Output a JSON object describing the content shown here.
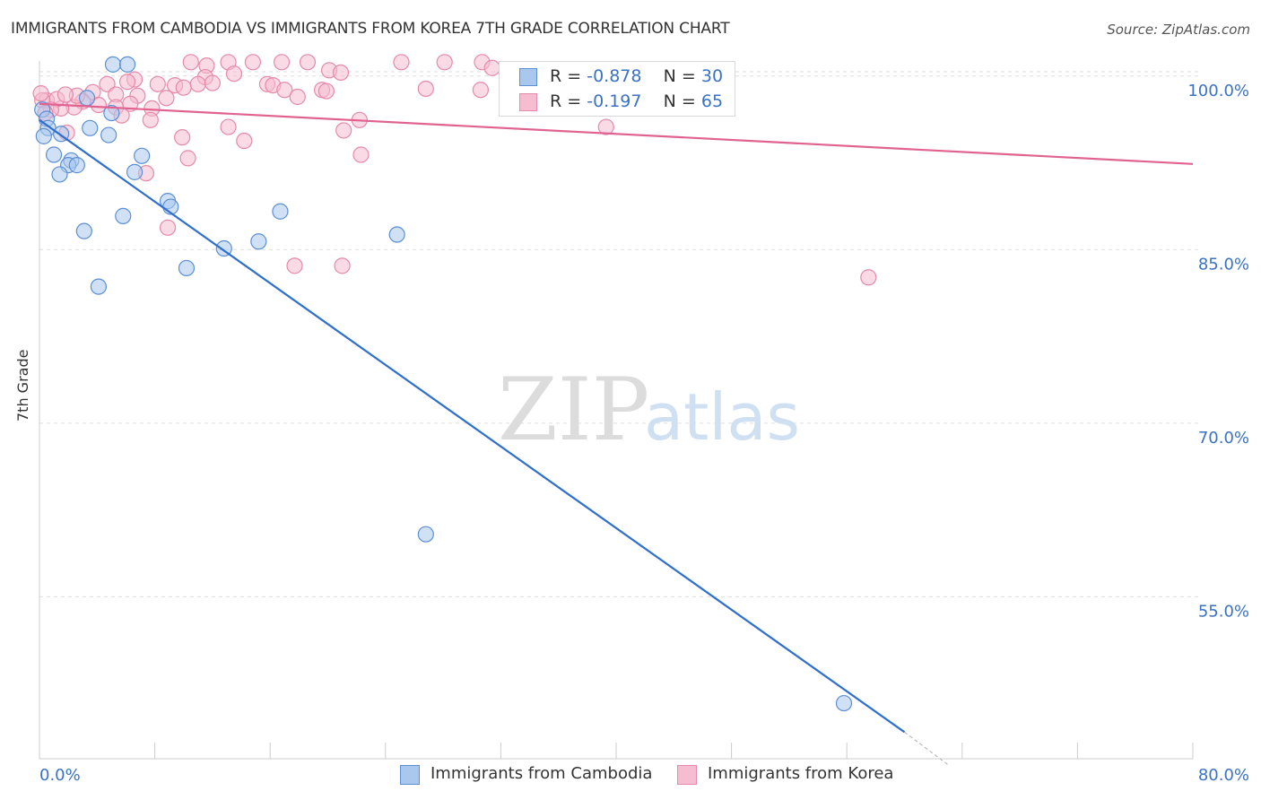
{
  "title": "IMMIGRANTS FROM CAMBODIA VS IMMIGRANTS FROM KOREA 7TH GRADE CORRELATION CHART",
  "source": "Source: ZipAtlas.com",
  "watermark": {
    "zip": "ZIP",
    "atlas": "atlas"
  },
  "legend_top": {
    "r_label": "R =",
    "n_label": "N =",
    "rows": [
      {
        "r": "-0.878",
        "n": "30"
      },
      {
        "r": "-0.197",
        "n": "65"
      }
    ]
  },
  "colors": {
    "cambodia_fill": "#aac8ee",
    "cambodia_stroke": "#5b8fd6",
    "cambodia_line": "#2e6fcf",
    "korea_fill": "#f6bcd0",
    "korea_stroke": "#e58aa9",
    "korea_line": "#e0628f",
    "tick_label": "#3a72c6",
    "grid": "#dddddd"
  },
  "chart_data": {
    "type": "scatter",
    "title": "IMMIGRANTS FROM CAMBODIA VS IMMIGRANTS FROM KOREA 7TH GRADE CORRELATION CHART",
    "xlabel": "",
    "ylabel": "7th Grade",
    "xlim": [
      0,
      80
    ],
    "ylim": [
      41,
      101.3
    ],
    "x_tick_labels": [
      "0.0%",
      "80.0%"
    ],
    "y_ticks": [
      100,
      85,
      70,
      55
    ],
    "y_tick_labels": [
      "100.0%",
      "85.0%",
      "70.0%",
      "55.0%"
    ],
    "grid": true,
    "legend_position": "bottom",
    "series": [
      {
        "name": "Immigrants from Cambodia",
        "points": [
          [
            5.1,
            101.0
          ],
          [
            6.1,
            101.0
          ],
          [
            3.3,
            98.1
          ],
          [
            0.2,
            97.1
          ],
          [
            0.5,
            96.3
          ],
          [
            0.6,
            95.5
          ],
          [
            1.5,
            95.0
          ],
          [
            3.5,
            95.5
          ],
          [
            4.8,
            94.9
          ],
          [
            5.0,
            96.8
          ],
          [
            1.0,
            93.2
          ],
          [
            2.2,
            92.7
          ],
          [
            2.0,
            92.3
          ],
          [
            2.6,
            92.3
          ],
          [
            7.1,
            93.1
          ],
          [
            1.4,
            91.5
          ],
          [
            6.6,
            91.7
          ],
          [
            8.9,
            89.2
          ],
          [
            9.1,
            88.7
          ],
          [
            16.7,
            88.3
          ],
          [
            5.8,
            87.9
          ],
          [
            3.1,
            86.6
          ],
          [
            24.8,
            86.3
          ],
          [
            15.2,
            85.7
          ],
          [
            12.8,
            85.1
          ],
          [
            10.2,
            83.4
          ],
          [
            4.1,
            81.8
          ],
          [
            26.8,
            60.4
          ],
          [
            55.8,
            45.8
          ],
          [
            0.3,
            94.8
          ]
        ],
        "trend": {
          "x0": 0,
          "y0": 96.2,
          "x1": 60,
          "y1": 43.3,
          "dashed_to_x": 63,
          "dashed_to_y": 40.5
        }
      },
      {
        "name": "Immigrants from Korea",
        "points": [
          [
            10.5,
            101.2
          ],
          [
            13.1,
            101.2
          ],
          [
            14.8,
            101.2
          ],
          [
            16.8,
            101.2
          ],
          [
            18.6,
            101.2
          ],
          [
            30.7,
            101.2
          ],
          [
            25.1,
            101.2
          ],
          [
            28.1,
            101.2
          ],
          [
            11.6,
            100.9
          ],
          [
            13.5,
            100.2
          ],
          [
            20.1,
            100.5
          ],
          [
            20.9,
            100.3
          ],
          [
            31.4,
            100.7
          ],
          [
            11.5,
            99.9
          ],
          [
            6.6,
            99.7
          ],
          [
            6.1,
            99.5
          ],
          [
            4.7,
            99.3
          ],
          [
            8.2,
            99.3
          ],
          [
            9.4,
            99.2
          ],
          [
            10.0,
            99.0
          ],
          [
            15.8,
            99.3
          ],
          [
            16.2,
            99.2
          ],
          [
            17.0,
            98.8
          ],
          [
            19.6,
            98.8
          ],
          [
            30.6,
            98.8
          ],
          [
            3.7,
            98.6
          ],
          [
            5.3,
            98.4
          ],
          [
            6.8,
            98.3
          ],
          [
            8.8,
            98.1
          ],
          [
            11.0,
            99.3
          ],
          [
            12.0,
            99.4
          ],
          [
            17.9,
            98.2
          ],
          [
            3.0,
            97.8
          ],
          [
            4.1,
            97.5
          ],
          [
            5.3,
            97.3
          ],
          [
            6.3,
            97.6
          ],
          [
            7.8,
            97.2
          ],
          [
            2.4,
            97.3
          ],
          [
            1.5,
            97.2
          ],
          [
            0.5,
            97.9
          ],
          [
            2.6,
            98.3
          ],
          [
            1.2,
            98.0
          ],
          [
            0.2,
            97.9
          ],
          [
            0.8,
            97.1
          ],
          [
            0.4,
            96.8
          ],
          [
            0.1,
            98.5
          ],
          [
            1.8,
            98.4
          ],
          [
            5.7,
            96.6
          ],
          [
            22.2,
            96.2
          ],
          [
            7.7,
            96.2
          ],
          [
            39.3,
            95.6
          ],
          [
            13.1,
            95.6
          ],
          [
            21.1,
            95.3
          ],
          [
            1.9,
            95.1
          ],
          [
            9.9,
            94.7
          ],
          [
            14.2,
            94.4
          ],
          [
            22.3,
            93.2
          ],
          [
            10.3,
            92.9
          ],
          [
            7.4,
            91.6
          ],
          [
            8.9,
            86.9
          ],
          [
            17.7,
            83.6
          ],
          [
            21.0,
            83.6
          ],
          [
            57.5,
            82.6
          ],
          [
            19.9,
            98.7
          ],
          [
            26.8,
            98.9
          ]
        ],
        "trend": {
          "x0": 0,
          "y0": 97.6,
          "x1": 80,
          "y1": 92.4
        }
      }
    ]
  }
}
